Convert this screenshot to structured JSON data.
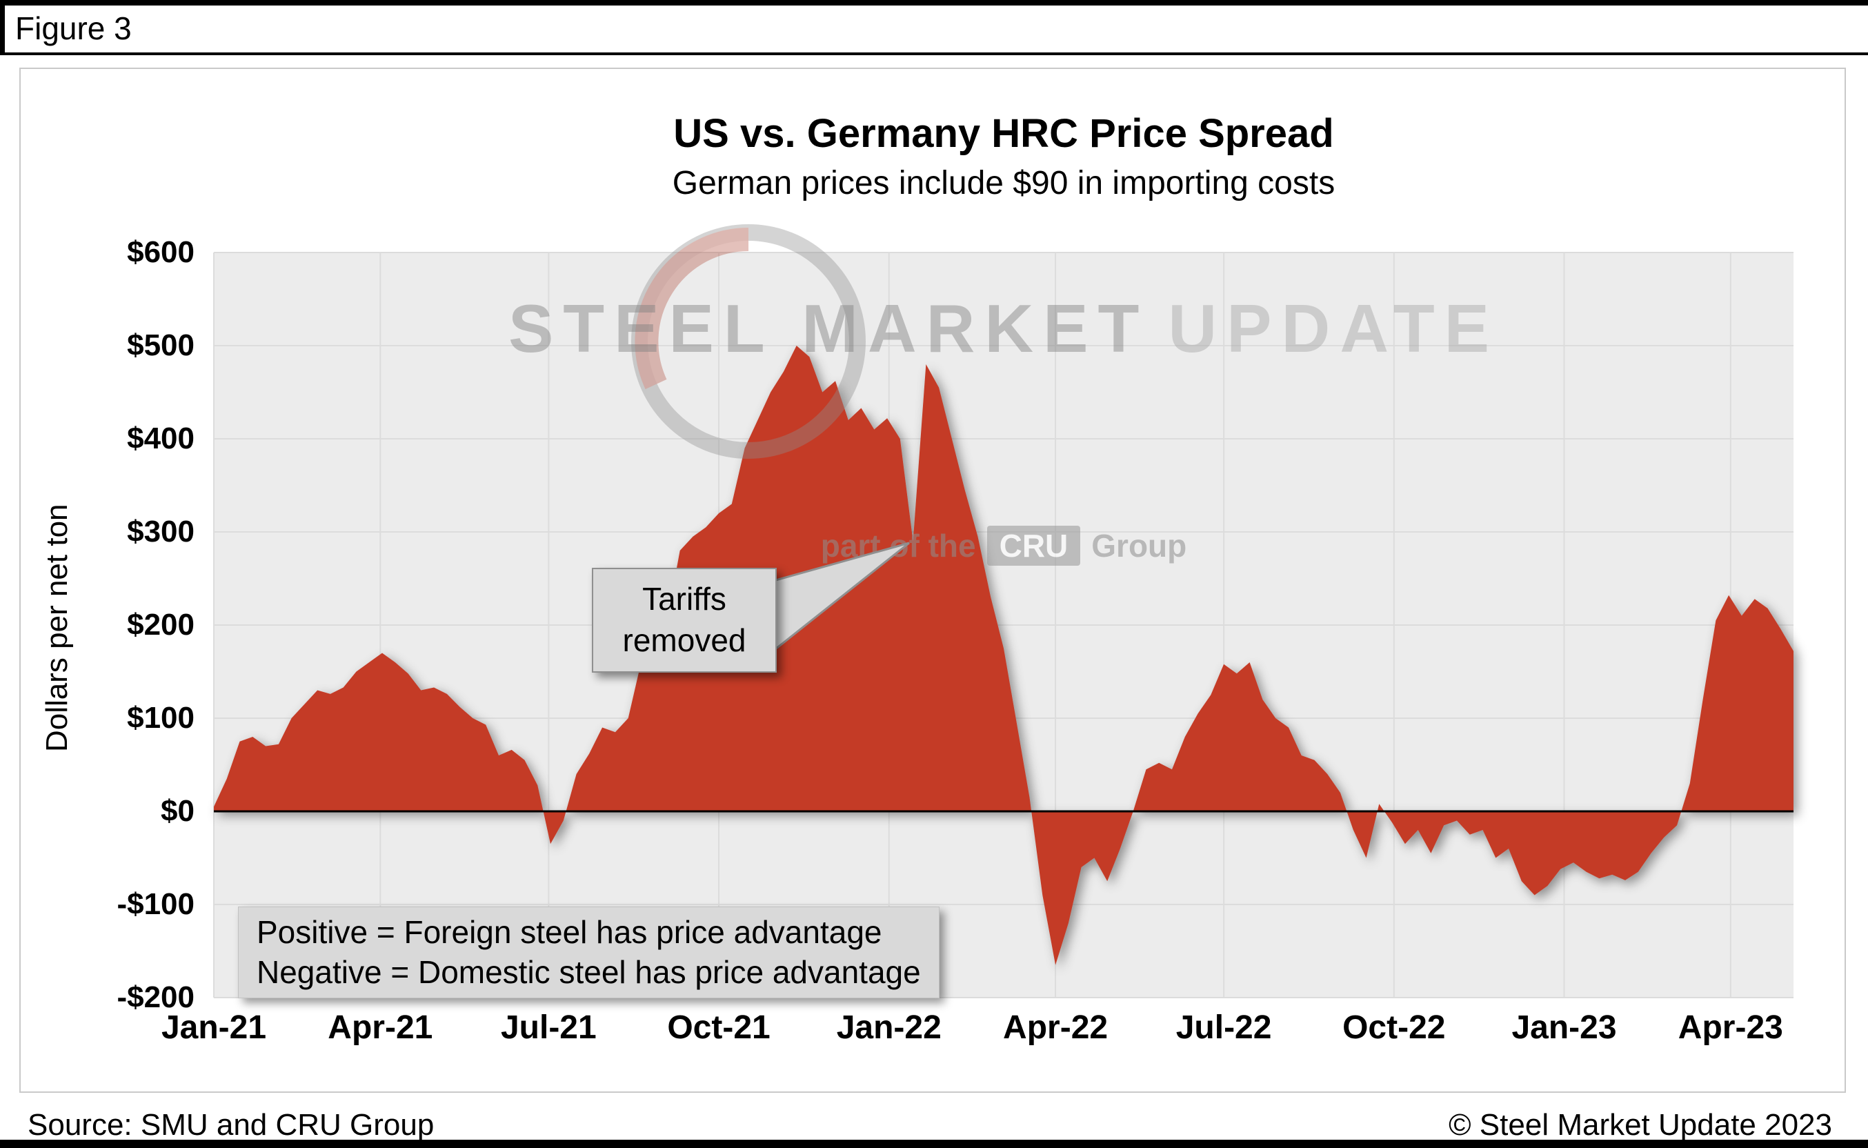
{
  "figure_label": "Figure 3",
  "chart_data": {
    "type": "area",
    "title": "US vs. Germany HRC Price Spread",
    "subtitle": "German prices include $90 in importing costs",
    "ylabel": "Dollars per net ton",
    "ylim": [
      -200,
      600
    ],
    "grid": "on",
    "area_color": "#c43a27",
    "plot_bg": "#ececec",
    "series_name": "US minus Germany HRC price spread, dollars per net ton, weekly",
    "x_start": "Jan-21",
    "x_end": "May-23",
    "values": [
      5,
      35,
      75,
      80,
      70,
      72,
      100,
      115,
      130,
      126,
      133,
      150,
      160,
      170,
      160,
      148,
      130,
      133,
      126,
      112,
      100,
      93,
      60,
      66,
      55,
      28,
      -35,
      -10,
      40,
      62,
      90,
      85,
      100,
      160,
      185,
      205,
      280,
      295,
      305,
      320,
      330,
      390,
      420,
      450,
      472,
      500,
      488,
      450,
      462,
      420,
      433,
      410,
      422,
      400,
      290,
      480,
      455,
      400,
      345,
      295,
      230,
      175,
      95,
      15,
      -90,
      -165,
      -120,
      -60,
      -50,
      -75,
      -40,
      0,
      45,
      52,
      45,
      80,
      105,
      125,
      158,
      148,
      160,
      120,
      100,
      90,
      60,
      55,
      40,
      20,
      -20,
      -50,
      8,
      -12,
      -35,
      -20,
      -45,
      -15,
      -10,
      -25,
      -20,
      -50,
      -40,
      -75,
      -90,
      -80,
      -62,
      -55,
      -65,
      -72,
      -68,
      -74,
      -65,
      -45,
      -28,
      -15,
      30,
      120,
      205,
      232,
      210,
      228,
      218,
      196,
      172
    ],
    "y_ticks": [
      {
        "label": "$600",
        "value": 600
      },
      {
        "label": "$500",
        "value": 500
      },
      {
        "label": "$400",
        "value": 400
      },
      {
        "label": "$300",
        "value": 300
      },
      {
        "label": "$200",
        "value": 200
      },
      {
        "label": "$100",
        "value": 100
      },
      {
        "label": "$0",
        "value": 0
      },
      {
        "label": "-$100",
        "value": -100
      },
      {
        "label": "-$200",
        "value": -200
      }
    ],
    "x_ticks": [
      {
        "label": "Jan-21",
        "week": 0
      },
      {
        "label": "Apr-21",
        "week": 12.857
      },
      {
        "label": "Jul-21",
        "week": 25.857
      },
      {
        "label": "Oct-21",
        "week": 39.0
      },
      {
        "label": "Jan-22",
        "week": 52.143
      },
      {
        "label": "Apr-22",
        "week": 65.0
      },
      {
        "label": "Jul-22",
        "week": 78.0
      },
      {
        "label": "Oct-22",
        "week": 91.143
      },
      {
        "label": "Jan-23",
        "week": 104.286
      },
      {
        "label": "Apr-23",
        "week": 117.143
      }
    ],
    "annotations": {
      "callout_line1": "Tariffs",
      "callout_line2": "removed",
      "note_line1": "Positive = Foreign steel has price advantage",
      "note_line2": "Negative = Domestic steel has price advantage"
    }
  },
  "watermark": {
    "title_strong": "STEEL MARKET",
    "title_light": "UPDATE",
    "tagline_prefix": "part of the",
    "tagline_brand": "CRU",
    "tagline_suffix": "Group"
  },
  "footer": {
    "source": "Source: SMU and CRU Group",
    "copyright": "© Steel Market Update 2023"
  }
}
